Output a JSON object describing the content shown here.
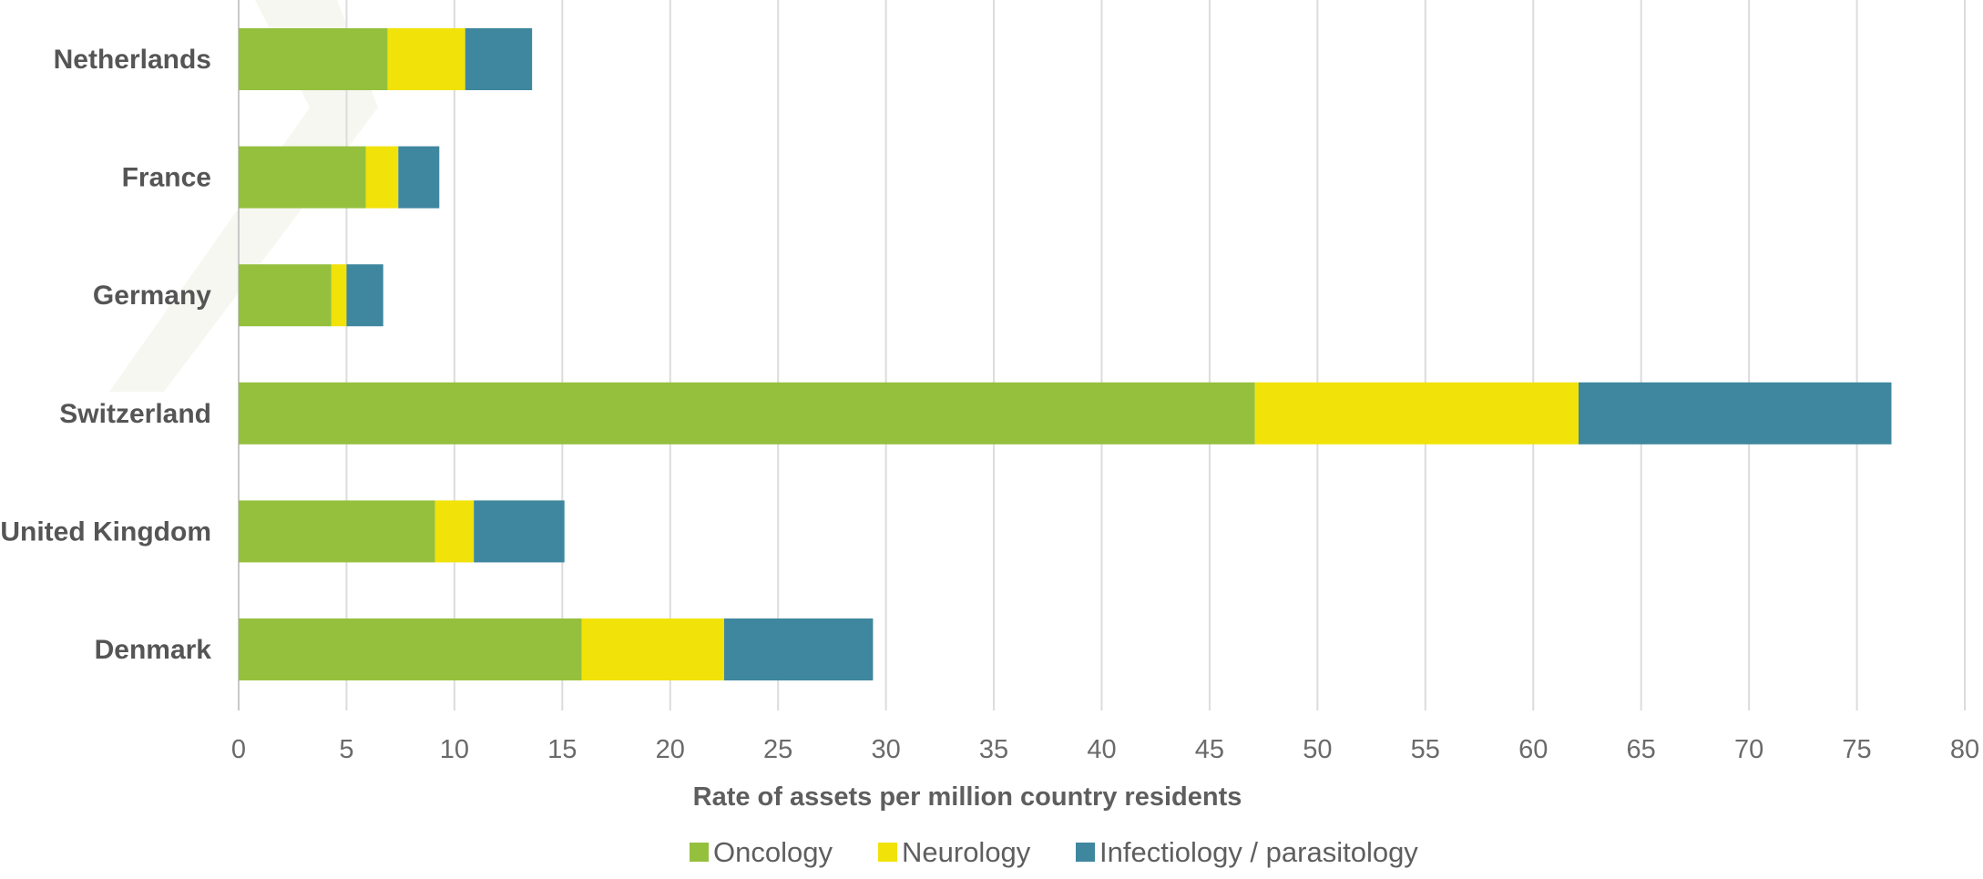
{
  "chart_data": {
    "type": "bar",
    "orientation": "horizontal",
    "stacked": true,
    "categories": [
      "Netherlands",
      "France",
      "Germany",
      "Switzerland",
      "United Kingdom",
      "Denmark"
    ],
    "series": [
      {
        "name": "Oncology",
        "color": "#95c03e",
        "values": [
          6.9,
          5.9,
          4.3,
          47.1,
          9.1,
          15.9
        ]
      },
      {
        "name": "Neurology",
        "color": "#f1e20a",
        "values": [
          3.6,
          1.5,
          0.7,
          15.0,
          1.8,
          6.6
        ]
      },
      {
        "name": "Infectiology / parasitology",
        "color": "#3e879e",
        "values": [
          3.1,
          1.9,
          1.7,
          14.5,
          4.2,
          6.9
        ]
      }
    ],
    "xlabel": "Rate of assets per million country residents",
    "xlim": [
      0,
      80
    ],
    "xticks": [
      "0",
      "5",
      "10",
      "15",
      "20",
      "25",
      "30",
      "35",
      "40",
      "45",
      "50",
      "55",
      "60",
      "65",
      "70",
      "75",
      "80"
    ],
    "grid": "vertical",
    "legend_position": "bottom"
  },
  "legend": {
    "items": [
      "Oncology",
      "Neurology",
      "Infectiology / parasitology"
    ]
  }
}
